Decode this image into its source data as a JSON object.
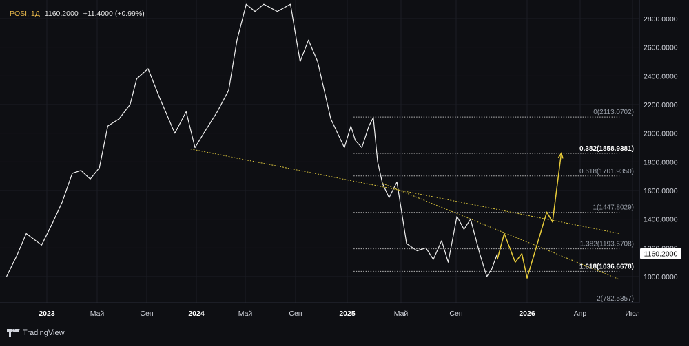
{
  "legend": {
    "symbol": "POSI, 1Д",
    "price": "1160.2000",
    "change": "+11.4000 (+0.99%)"
  },
  "branding": "TradingView",
  "colors": {
    "background": "#0e0f13",
    "price_line": "#f0f0f0",
    "forecast": "#e8cc3a",
    "trendline": "#d8c23c",
    "fib_line": "#d7d7d7",
    "axis_text": "#d1d4dc",
    "grid": "#1c1e25"
  },
  "chart_data": {
    "type": "line",
    "yaxis": {
      "ticks": [
        "1000.0000",
        "1200.0000",
        "1400.0000",
        "1600.0000",
        "1800.0000",
        "2000.0000",
        "2200.0000",
        "2400.0000",
        "2600.0000",
        "2800.0000"
      ],
      "current_price_label": "1160.2000"
    },
    "xaxis": {
      "ticks": [
        "2023",
        "Май",
        "Сен",
        "2024",
        "Май",
        "Сен",
        "2025",
        "Май",
        "Сен",
        "2026",
        "Апр",
        "Июл"
      ],
      "bold": [
        true,
        false,
        false,
        true,
        false,
        false,
        true,
        false,
        false,
        true,
        false,
        false
      ]
    },
    "series": [
      {
        "x": [
          "2022-10-01",
          "2022-10-25",
          "2022-11-15",
          "2022-12-20",
          "2023-01-15",
          "2023-02-05",
          "2023-02-28",
          "2023-03-20",
          "2023-04-10",
          "2023-05-01",
          "2023-05-20",
          "2023-06-15",
          "2023-07-10",
          "2023-07-25",
          "2023-08-20",
          "2023-09-15",
          "2023-10-20",
          "2023-11-15",
          "2023-12-05",
          "2023-12-25",
          "2024-01-25",
          "2024-02-20",
          "2024-03-10",
          "2024-03-31",
          "2024-04-20",
          "2024-05-10",
          "2024-06-10",
          "2024-07-10",
          "2024-08-01",
          "2024-08-20",
          "2024-09-10",
          "2024-10-10",
          "2024-11-10",
          "2024-11-25",
          "2024-12-05",
          "2024-12-20",
          "2025-01-05",
          "2025-01-15",
          "2025-01-25",
          "2025-02-05",
          "2025-02-20",
          "2025-03-10",
          "2025-04-01",
          "2025-04-25",
          "2025-05-15",
          "2025-06-01",
          "2025-06-20",
          "2025-07-05",
          "2025-07-25",
          "2025-08-10",
          "2025-08-25",
          "2025-09-15",
          "2025-10-01",
          "2025-10-12",
          "2025-10-25"
        ],
        "values": [
          1000,
          1150,
          1300,
          1220,
          1380,
          1520,
          1720,
          1740,
          1680,
          1760,
          2050,
          2100,
          2200,
          2380,
          2450,
          2250,
          2000,
          2150,
          1900,
          2000,
          2150,
          2300,
          2650,
          2900,
          2850,
          2900,
          2850,
          2900,
          2500,
          2650,
          2500,
          2100,
          1900,
          2050,
          1950,
          1900,
          2050,
          2110,
          1800,
          1650,
          1550,
          1660,
          1230,
          1180,
          1200,
          1120,
          1250,
          1100,
          1420,
          1330,
          1400,
          1160,
          1000,
          1050,
          1160
        ]
      },
      {
        "name": "",
        "x": [
          "2025-10-25",
          "2025-11-10",
          "2025-12-05",
          "2025-12-20",
          "2026-01-01",
          "2026-02-15",
          "2026-02-28",
          "2026-03-20"
        ],
        "values": [
          1120,
          1300,
          1100,
          1160,
          990,
          1450,
          1380,
          1860
        ]
      }
    ],
    "trendlines": [
      {
        "x": [
          "2023-11-25",
          "2026-07-31"
        ],
        "values": [
          1890,
          1300
        ]
      },
      {
        "x": [
          "2025-02-05",
          "2026-07-31"
        ],
        "values": [
          1650,
          980
        ]
      }
    ],
    "fibonacci": [
      {
        "label": "0(2113.0702)",
        "value": 2113.0702,
        "bold": false
      },
      {
        "label": "0.382(1858.9381)",
        "value": 1858.9381,
        "bold": true
      },
      {
        "label": "0.618(1701.9350)",
        "value": 1701.935,
        "bold": false
      },
      {
        "label": "1(1447.8029)",
        "value": 1447.8029,
        "bold": false
      },
      {
        "label": "1.382(1193.6708)",
        "value": 1193.6708,
        "bold": false
      },
      {
        "label": "1.618(1036.6678)",
        "value": 1036.6678,
        "bold": true
      },
      {
        "label": "2(782.5357)",
        "value": 782.5357,
        "bold": false
      }
    ],
    "fib_range": {
      "x": [
        "2024-12-01",
        "2026-07-31"
      ]
    }
  }
}
